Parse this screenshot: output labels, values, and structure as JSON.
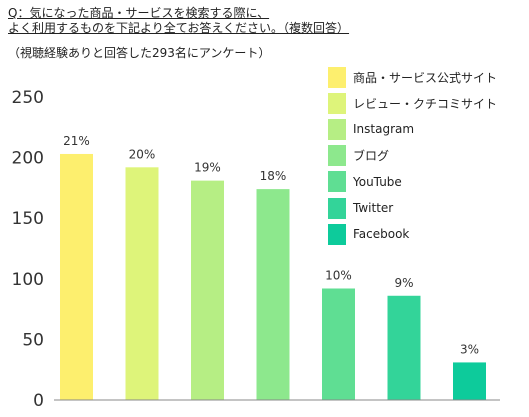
{
  "question": {
    "line1": "Q：気になった商品・サービスを検索する際に、",
    "line2": "よく利用するものを下記より全てお答えください。（複数回答）"
  },
  "subtitle": "（視聴経験ありと回答した293名にアンケート）",
  "chart_data": {
    "type": "bar",
    "categories": [
      "商品・サービス公式サイト",
      "レビュー・クチコミサイト",
      "Instagram",
      "ブログ",
      "YouTube",
      "Twitter",
      "Facebook"
    ],
    "values": [
      203,
      192,
      181,
      174,
      92,
      86,
      31
    ],
    "data_labels": [
      "21%",
      "20%",
      "19%",
      "18%",
      "10%",
      "9%",
      "3%"
    ],
    "colors": [
      "#FDEF6E",
      "#DEF47A",
      "#B6EE84",
      "#8DE88D",
      "#5FDE93",
      "#33D499",
      "#0DCB9B"
    ],
    "y_ticks": [
      0,
      50,
      100,
      150,
      200,
      250
    ],
    "ylim": [
      0,
      250
    ],
    "grid": false,
    "legend_position": "top-right",
    "title": "",
    "xlabel": "",
    "ylabel": ""
  }
}
